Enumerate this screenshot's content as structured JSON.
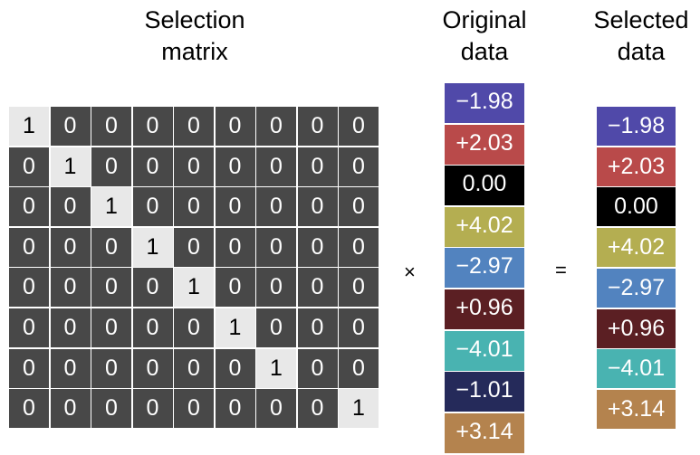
{
  "titles": {
    "selection": [
      "Selection",
      "matrix"
    ],
    "original": [
      "Original",
      "data"
    ],
    "selected": [
      "Selected",
      "data"
    ]
  },
  "operators": {
    "times": "×",
    "equals": "="
  },
  "matrix": [
    [
      1,
      0,
      0,
      0,
      0,
      0,
      0,
      0,
      0
    ],
    [
      0,
      1,
      0,
      0,
      0,
      0,
      0,
      0,
      0
    ],
    [
      0,
      0,
      1,
      0,
      0,
      0,
      0,
      0,
      0
    ],
    [
      0,
      0,
      0,
      1,
      0,
      0,
      0,
      0,
      0
    ],
    [
      0,
      0,
      0,
      0,
      1,
      0,
      0,
      0,
      0
    ],
    [
      0,
      0,
      0,
      0,
      0,
      1,
      0,
      0,
      0
    ],
    [
      0,
      0,
      0,
      0,
      0,
      0,
      1,
      0,
      0
    ],
    [
      0,
      0,
      0,
      0,
      0,
      0,
      0,
      0,
      1
    ]
  ],
  "original_data": [
    {
      "value": "−1.98",
      "color": "#5049a9"
    },
    {
      "value": "+2.03",
      "color": "#b94a4a"
    },
    {
      "value": "0.00",
      "color": "#000000"
    },
    {
      "value": "+4.02",
      "color": "#b4ae51"
    },
    {
      "value": "−2.97",
      "color": "#5283bf"
    },
    {
      "value": "+0.96",
      "color": "#5b1f23"
    },
    {
      "value": "−4.01",
      "color": "#49b3b1"
    },
    {
      "value": "−1.01",
      "color": "#252a5a"
    },
    {
      "value": "+3.14",
      "color": "#b4834e"
    }
  ],
  "selected_data": [
    {
      "value": "−1.98",
      "color": "#5049a9"
    },
    {
      "value": "+2.03",
      "color": "#b94a4a"
    },
    {
      "value": "0.00",
      "color": "#000000"
    },
    {
      "value": "+4.02",
      "color": "#b4ae51"
    },
    {
      "value": "−2.97",
      "color": "#5283bf"
    },
    {
      "value": "+0.96",
      "color": "#5b1f23"
    },
    {
      "value": "−4.01",
      "color": "#49b3b1"
    },
    {
      "value": "+3.14",
      "color": "#b4834e"
    }
  ]
}
